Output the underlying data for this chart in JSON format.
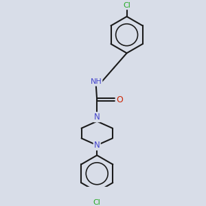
{
  "bg_color": "#d8dde8",
  "bond_color": "#1a1a1a",
  "atom_colors": {
    "N": "#4444cc",
    "O": "#cc2200",
    "Cl": "#22aa22",
    "H": "#888888"
  },
  "bond_width": 1.5,
  "figsize": [
    3.0,
    3.0
  ],
  "dpi": 100
}
